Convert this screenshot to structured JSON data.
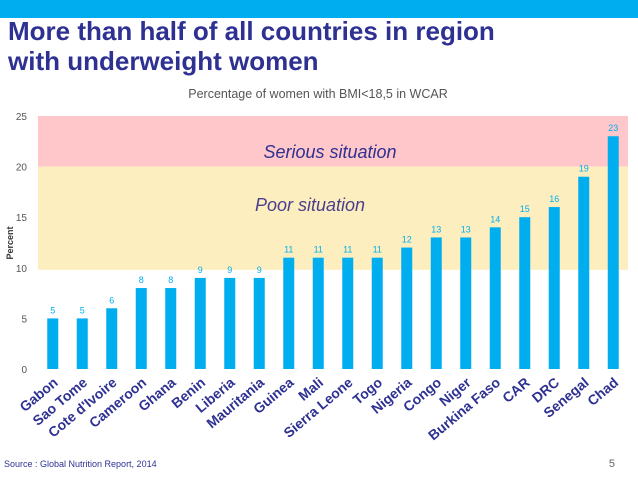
{
  "slide": {
    "title_line1": "More than half of all countries in region",
    "title_line2": "with underweight women",
    "source": "Source : Global Nutrition Report, 2014",
    "page_number": "5"
  },
  "colors": {
    "accent_bar": "#00aeef",
    "title": "#2e3192",
    "bar": "#00aeef",
    "serious_zone": "#ffc7c9",
    "poor_zone": "#fdeebf",
    "serious_text": "#2e3192",
    "poor_text": "#4a3f8c",
    "data_label": "#00aeef"
  },
  "chart_data": {
    "type": "bar",
    "title": "Percentage of women with BMI<18,5 in WCAR",
    "ylabel": "Percent",
    "xlabel": "",
    "ylim": [
      0,
      25
    ],
    "yticks": [
      0,
      5,
      10,
      15,
      20,
      25
    ],
    "grid": false,
    "categories": [
      "Gabon",
      "Sao Tome",
      "Cote d'Ivoire",
      "Cameroon",
      "Ghana",
      "Benin",
      "Liberia",
      "Mauritania",
      "Guinea",
      "Mali",
      "Sierra Leone",
      "Togo",
      "Nigeria",
      "Congo",
      "Niger",
      "Burkina Faso",
      "CAR",
      "DRC",
      "Senegal",
      "Chad"
    ],
    "values": [
      5,
      5,
      6,
      8,
      8,
      9,
      9,
      9,
      11,
      11,
      11,
      11,
      12,
      13,
      13,
      14,
      15,
      16,
      19,
      23
    ],
    "zones": [
      {
        "label": "Serious situation",
        "from": 20,
        "to": 25
      },
      {
        "label": "Poor situation",
        "from": 9.8,
        "to": 20
      }
    ]
  }
}
